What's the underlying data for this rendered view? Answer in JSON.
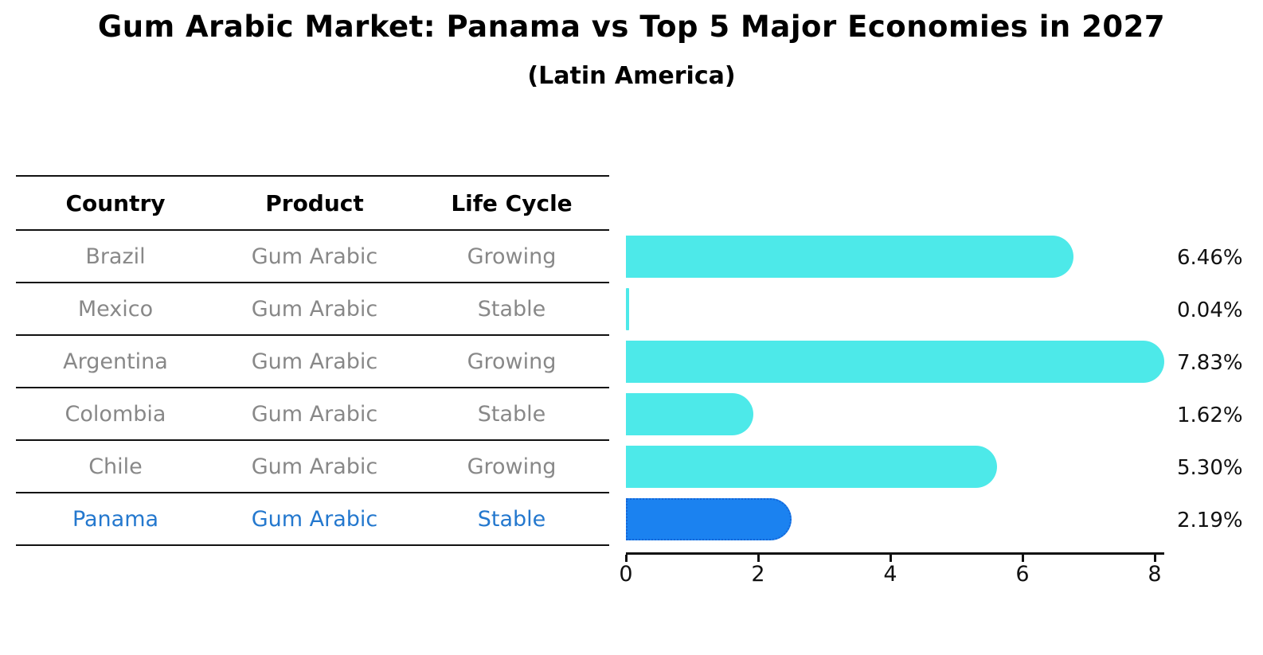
{
  "title": "Gum Arabic Market: Panama vs Top 5 Major Economies in 2027",
  "subtitle": "(Latin America)",
  "table": {
    "headers": [
      "Country",
      "Product",
      "Life Cycle"
    ],
    "rows": [
      {
        "country": "Brazil",
        "product": "Gum Arabic",
        "life_cycle": "Growing",
        "highlight": false
      },
      {
        "country": "Mexico",
        "product": "Gum Arabic",
        "life_cycle": "Stable",
        "highlight": false
      },
      {
        "country": "Argentina",
        "product": "Gum Arabic",
        "life_cycle": "Growing",
        "highlight": false
      },
      {
        "country": "Colombia",
        "product": "Gum Arabic",
        "life_cycle": "Stable",
        "highlight": false
      },
      {
        "country": "Chile",
        "product": "Gum Arabic",
        "life_cycle": "Growing",
        "highlight": false
      },
      {
        "country": "Panama",
        "product": "Gum Arabic",
        "life_cycle": "Stable",
        "highlight": true
      }
    ]
  },
  "chart_data": {
    "type": "bar",
    "orientation": "horizontal",
    "title": "Gum Arabic Market: Panama vs Top 5 Major Economies in 2027",
    "subtitle": "(Latin America)",
    "categories": [
      "Brazil",
      "Mexico",
      "Argentina",
      "Colombia",
      "Chile",
      "Panama"
    ],
    "values": [
      6.46,
      0.04,
      7.83,
      1.62,
      5.3,
      2.19
    ],
    "value_labels": [
      "6.46%",
      "0.04%",
      "7.83%",
      "1.62%",
      "5.30%",
      "2.19%"
    ],
    "xlim": [
      0,
      8
    ],
    "xticks": [
      0,
      2,
      4,
      6,
      8
    ],
    "highlight_index": 5,
    "grid": false,
    "legend": false
  },
  "colors": {
    "bar": "#4DE9E9",
    "highlight_bar": "#1B82F0",
    "highlight_border": "#1566D8",
    "row_text": "#888888",
    "highlight_text": "#2478CE",
    "header_text": "#000000",
    "axis": "#111111"
  }
}
